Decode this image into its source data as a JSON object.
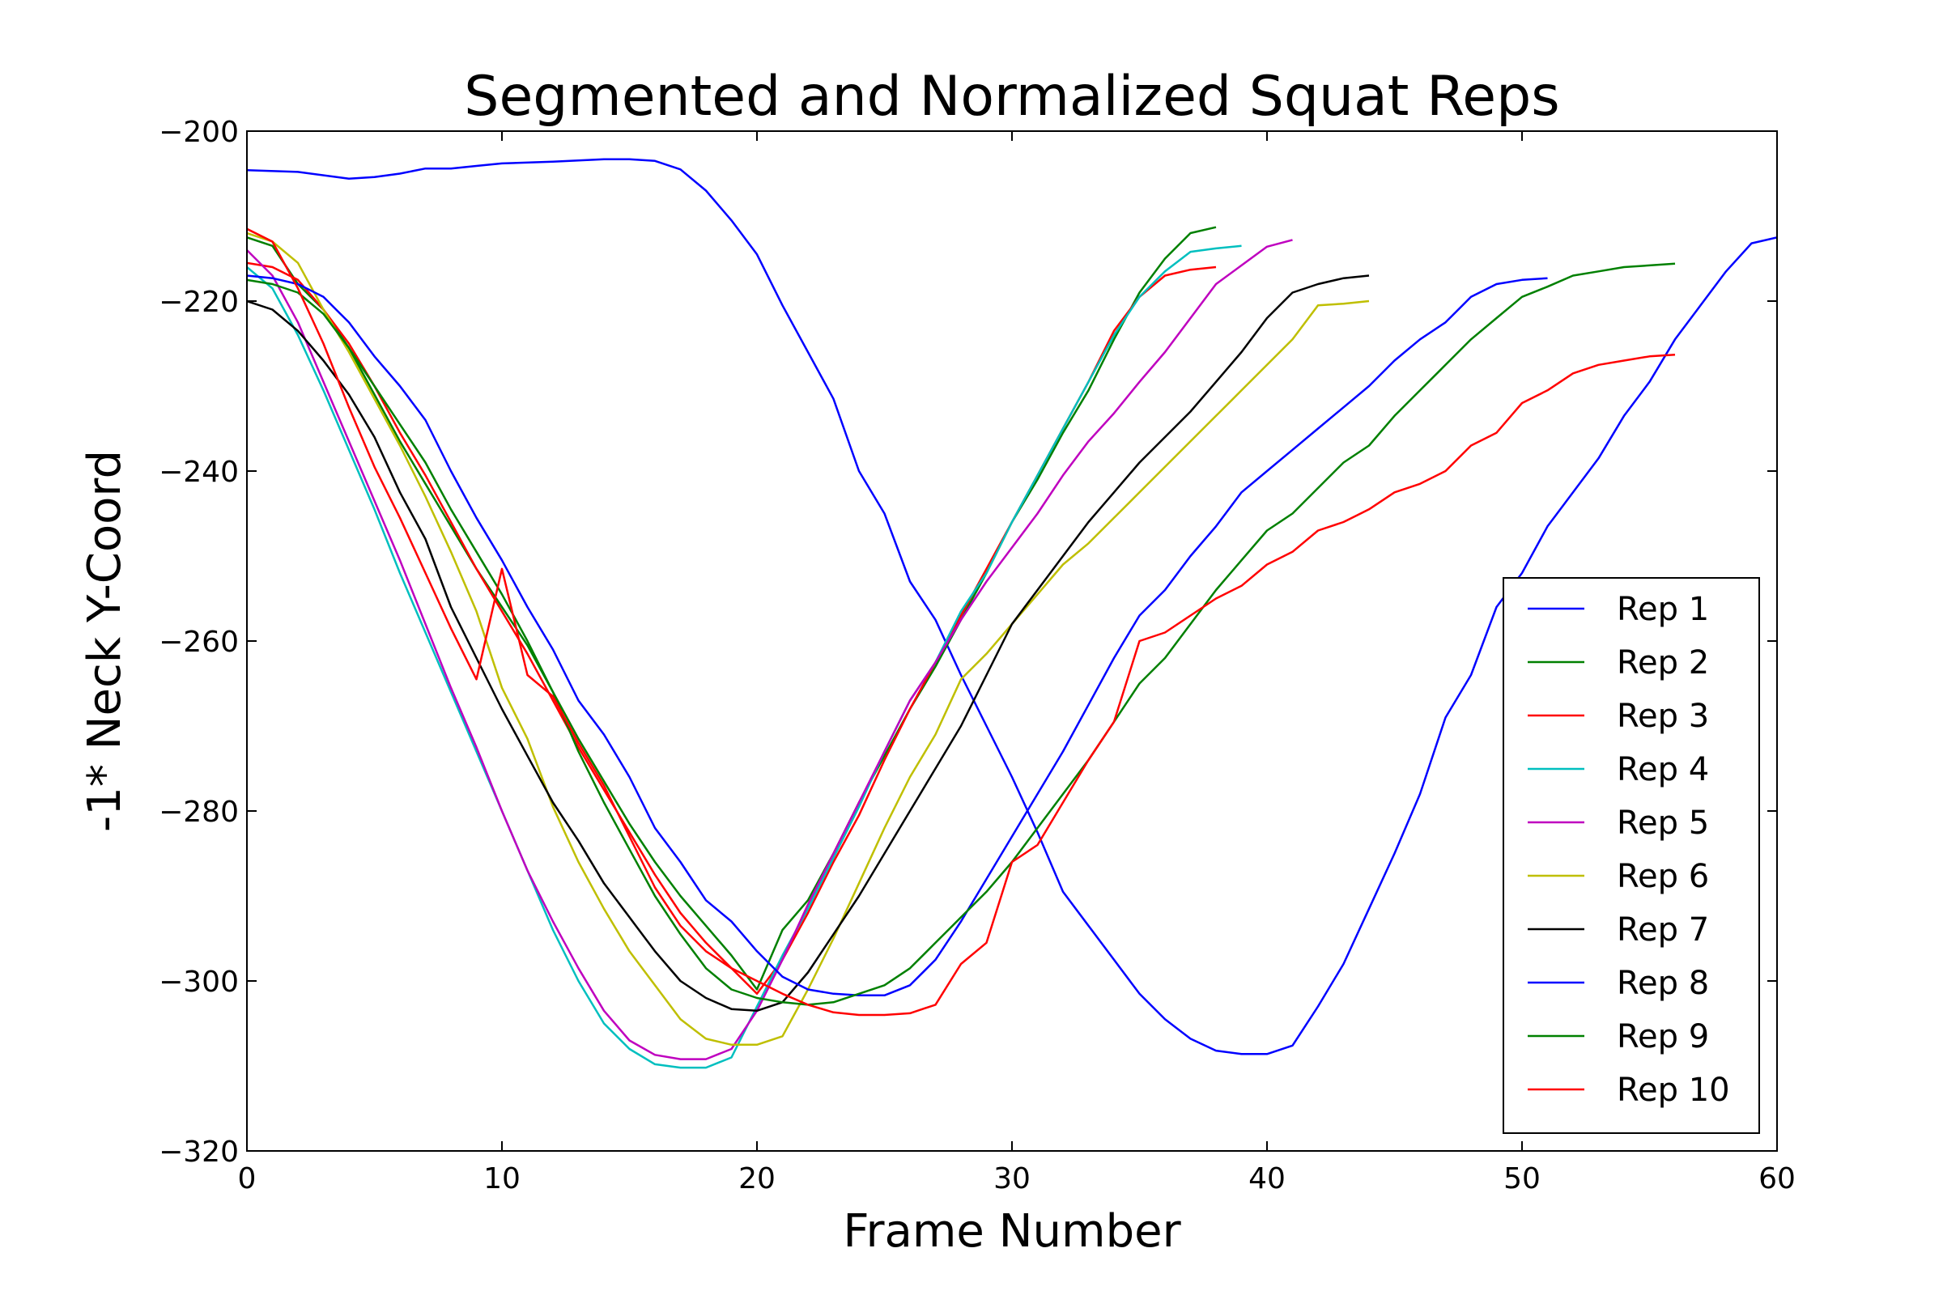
{
  "chart_data": {
    "type": "line",
    "title": "Segmented and Normalized Squat Reps",
    "xlabel": "Frame Number",
    "ylabel": "-1* Neck Y-Coord",
    "xlim": [
      0,
      60
    ],
    "ylim": [
      -320,
      -200
    ],
    "xticks": [
      0,
      10,
      20,
      30,
      40,
      50,
      60
    ],
    "xtick_labels": [
      "0",
      "10",
      "20",
      "30",
      "40",
      "50",
      "60"
    ],
    "yticks": [
      -200,
      -220,
      -240,
      -260,
      -280,
      -300,
      -320
    ],
    "ytick_labels": [
      "−200",
      "−220",
      "−240",
      "−260",
      "−280",
      "−300",
      "−320"
    ],
    "grid": false,
    "legend_position": "lower-right",
    "series": [
      {
        "name": "Rep 1",
        "color": "#0000ff",
        "x": [
          0,
          2,
          4,
          5,
          6,
          7,
          8,
          9,
          10,
          12,
          14,
          15,
          16,
          17,
          18,
          19,
          20,
          21,
          22,
          23,
          24,
          25,
          26,
          27,
          28,
          29,
          30,
          31,
          32,
          33,
          34,
          35,
          36,
          37,
          38,
          39,
          40,
          41,
          42,
          43,
          44,
          45,
          46,
          47,
          48,
          49,
          50,
          51,
          52,
          53,
          54,
          55,
          56,
          57,
          58,
          59,
          60
        ],
        "y": [
          -204.6,
          -204.8,
          -205.6,
          -205.4,
          -205,
          -204.4,
          -204.4,
          -204.1,
          -203.8,
          -203.6,
          -203.3,
          -203.3,
          -203.5,
          -204.5,
          -207,
          -210.5,
          -214.5,
          -220.5,
          -226,
          -231.5,
          -240,
          -245,
          -253,
          -257.5,
          -264,
          -270,
          -276,
          -282.5,
          -289.5,
          -293.5,
          -297.5,
          -301.5,
          -304.5,
          -306.8,
          -308.2,
          -308.6,
          -308.6,
          -307.6,
          -303,
          -298,
          -291.5,
          -285,
          -278,
          -269,
          -264,
          -256,
          -252,
          -246.5,
          -242.5,
          -238.5,
          -233.5,
          -229.5,
          -224.5,
          -220.5,
          -216.5,
          -213.2,
          -212.5
        ]
      },
      {
        "name": "Rep 2",
        "color": "#008000",
        "x": [
          0,
          1,
          2,
          3,
          4,
          5,
          6,
          7,
          8,
          9,
          10,
          11,
          12,
          13,
          14,
          15,
          16,
          17,
          18,
          19,
          20,
          21,
          22,
          23,
          24,
          25,
          26,
          27,
          28,
          29,
          30,
          31,
          32,
          33,
          34,
          35,
          36,
          37,
          38
        ],
        "y": [
          -212.5,
          -213.5,
          -218,
          -221,
          -225.5,
          -231,
          -236.5,
          -241.5,
          -246.5,
          -251.5,
          -256,
          -260.5,
          -266,
          -271.5,
          -276.5,
          -281.5,
          -286,
          -290,
          -293.5,
          -297,
          -301,
          -294,
          -290.5,
          -285,
          -279,
          -273.5,
          -268,
          -263,
          -257.5,
          -252,
          -246,
          -241,
          -235.5,
          -230.5,
          -224.5,
          -219,
          -215,
          -212,
          -211.3
        ]
      },
      {
        "name": "Rep 3",
        "color": "#ff0000",
        "x": [
          0,
          1,
          2,
          3,
          4,
          5,
          6,
          7,
          8,
          9,
          10,
          11,
          12,
          13,
          14,
          15,
          16,
          17,
          18,
          19,
          20,
          21,
          22,
          23,
          24,
          25,
          26,
          27,
          28,
          29,
          30,
          31,
          32,
          33,
          34,
          35,
          36,
          37,
          38
        ],
        "y": [
          -215.5,
          -216,
          -217.5,
          -221,
          -225,
          -230,
          -235.5,
          -240.5,
          -246,
          -251.5,
          -256.5,
          -261.5,
          -267,
          -272.5,
          -277.5,
          -282.5,
          -287.5,
          -292,
          -295.5,
          -298.5,
          -301.5,
          -297.5,
          -292,
          -286,
          -280.5,
          -274,
          -268,
          -262.5,
          -257,
          -251.5,
          -246,
          -240.5,
          -235,
          -229.5,
          -223.5,
          -219.5,
          -217,
          -216.3,
          -216
        ]
      },
      {
        "name": "Rep 4",
        "color": "#00bfbf",
        "x": [
          0,
          1,
          2,
          3,
          4,
          5,
          6,
          7,
          8,
          9,
          10,
          11,
          12,
          13,
          14,
          15,
          16,
          17,
          18,
          19,
          20,
          21,
          22,
          23,
          24,
          25,
          26,
          27,
          28,
          29,
          30,
          31,
          32,
          33,
          34,
          35,
          36,
          37,
          38,
          39
        ],
        "y": [
          -216,
          -218.5,
          -224,
          -230.5,
          -237.5,
          -244.5,
          -252,
          -259,
          -266,
          -273,
          -280,
          -287,
          -294,
          -300,
          -305,
          -308,
          -309.8,
          -310.2,
          -310.2,
          -309,
          -303,
          -297,
          -291.5,
          -285.5,
          -279.5,
          -273,
          -267,
          -262.5,
          -256.5,
          -252,
          -246,
          -240.5,
          -235,
          -229.5,
          -224,
          -219.5,
          -216.5,
          -214.2,
          -213.8,
          -213.5
        ]
      },
      {
        "name": "Rep 5",
        "color": "#bf00bf",
        "x": [
          0,
          1,
          2,
          3,
          4,
          5,
          6,
          7,
          8,
          9,
          10,
          11,
          12,
          13,
          14,
          15,
          16,
          17,
          18,
          19,
          20,
          21,
          22,
          23,
          24,
          25,
          26,
          27,
          28,
          29,
          30,
          31,
          32,
          33,
          34,
          35,
          36,
          37,
          38,
          39,
          40,
          41
        ],
        "y": [
          -214,
          -217,
          -222.5,
          -229.5,
          -236.5,
          -243.5,
          -250.5,
          -258,
          -265.5,
          -272.5,
          -280,
          -287,
          -293,
          -298.5,
          -303.5,
          -307,
          -308.7,
          -309.2,
          -309.2,
          -308,
          -303.5,
          -297.5,
          -291,
          -285,
          -279,
          -273,
          -267,
          -262.5,
          -257.5,
          -253,
          -249,
          -245,
          -240.5,
          -236.5,
          -233.2,
          -229.5,
          -226,
          -222,
          -218,
          -215.8,
          -213.6,
          -212.8
        ]
      },
      {
        "name": "Rep 6",
        "color": "#bfbf00",
        "x": [
          0,
          1,
          2,
          3,
          4,
          5,
          6,
          7,
          8,
          9,
          10,
          11,
          12,
          13,
          14,
          15,
          16,
          17,
          18,
          19,
          20,
          21,
          22,
          23,
          24,
          25,
          26,
          27,
          28,
          29,
          30,
          31,
          32,
          33,
          34,
          35,
          36,
          37,
          38,
          39,
          40,
          41,
          42,
          43,
          44
        ],
        "y": [
          -212,
          -213,
          -215.5,
          -221,
          -226,
          -231.5,
          -237,
          -243,
          -249.5,
          -256.5,
          -265.5,
          -271.5,
          -279.5,
          -286,
          -291.5,
          -296.5,
          -300.5,
          -304.5,
          -306.8,
          -307.5,
          -307.5,
          -306.5,
          -301,
          -295,
          -288.5,
          -282,
          -276,
          -271,
          -264.5,
          -261.5,
          -258,
          -254.5,
          -251,
          -248.5,
          -245.5,
          -242.5,
          -239.5,
          -236.5,
          -233.5,
          -230.5,
          -227.5,
          -224.5,
          -220.5,
          -220.3,
          -220
        ]
      },
      {
        "name": "Rep 7",
        "color": "#000000",
        "x": [
          0,
          1,
          2,
          3,
          4,
          5,
          6,
          7,
          8,
          9,
          10,
          11,
          12,
          13,
          14,
          15,
          16,
          17,
          18,
          19,
          20,
          21,
          22,
          23,
          24,
          25,
          26,
          27,
          28,
          29,
          30,
          31,
          32,
          33,
          34,
          35,
          36,
          37,
          38,
          39,
          40,
          41,
          42,
          43,
          44
        ],
        "y": [
          -220,
          -221,
          -223.5,
          -227,
          -231,
          -236,
          -242.5,
          -248,
          -256,
          -262,
          -268,
          -273.5,
          -279,
          -283.5,
          -288.5,
          -292.5,
          -296.5,
          -300,
          -302,
          -303.3,
          -303.5,
          -302.5,
          -299,
          -294.5,
          -290,
          -285,
          -280,
          -275,
          -270,
          -264,
          -258,
          -254,
          -250,
          -246,
          -242.5,
          -239,
          -236,
          -233,
          -229.5,
          -226,
          -222,
          -219,
          -218,
          -217.3,
          -217
        ]
      },
      {
        "name": "Rep 8",
        "color": "#0000ff",
        "x": [
          0,
          1,
          2,
          3,
          4,
          5,
          6,
          7,
          8,
          9,
          10,
          11,
          12,
          13,
          14,
          15,
          16,
          17,
          18,
          19,
          20,
          21,
          22,
          23,
          24,
          25,
          26,
          27,
          28,
          29,
          30,
          31,
          32,
          33,
          34,
          35,
          36,
          37,
          38,
          39,
          40,
          41,
          42,
          43,
          44,
          45,
          46,
          47,
          48,
          49,
          50,
          51
        ],
        "y": [
          -217,
          -217.3,
          -218,
          -219.5,
          -222.5,
          -226.5,
          -230,
          -234,
          -240,
          -245.5,
          -250.5,
          -256,
          -261,
          -267,
          -271,
          -276,
          -282,
          -286,
          -290.5,
          -293,
          -296.5,
          -299.5,
          -301,
          -301.5,
          -301.7,
          -301.7,
          -300.5,
          -297.5,
          -293,
          -288,
          -283,
          -278,
          -273,
          -267.5,
          -262,
          -257,
          -254,
          -250,
          -246.5,
          -242.5,
          -240,
          -237.5,
          -235,
          -232.5,
          -230,
          -227,
          -224.5,
          -222.5,
          -219.5,
          -218,
          -217.5,
          -217.3
        ]
      },
      {
        "name": "Rep 9",
        "color": "#008000",
        "x": [
          0,
          1,
          2,
          3,
          4,
          5,
          6,
          7,
          8,
          9,
          10,
          11,
          12,
          13,
          14,
          15,
          16,
          17,
          18,
          19,
          20,
          21,
          22,
          23,
          24,
          25,
          26,
          27,
          28,
          29,
          30,
          31,
          32,
          33,
          34,
          35,
          36,
          37,
          38,
          39,
          40,
          41,
          42,
          43,
          44,
          45,
          46,
          47,
          48,
          49,
          50,
          51,
          52,
          53,
          54,
          55,
          56
        ],
        "y": [
          -217.5,
          -218,
          -219,
          -221.5,
          -225.5,
          -230,
          -234.5,
          -239,
          -244.5,
          -249.5,
          -254.5,
          -260,
          -266,
          -273,
          -279,
          -284.5,
          -290,
          -294.5,
          -298.5,
          -301,
          -302,
          -302.5,
          -302.8,
          -302.5,
          -301.5,
          -300.5,
          -298.5,
          -295.5,
          -292.5,
          -289.5,
          -286,
          -282,
          -278,
          -274,
          -269.5,
          -265,
          -262,
          -258,
          -254,
          -250.5,
          -247,
          -245,
          -242,
          -239,
          -237,
          -233.5,
          -230.5,
          -227.5,
          -224.5,
          -222,
          -219.5,
          -218.3,
          -217,
          -216.5,
          -216,
          -215.8,
          -215.6
        ]
      },
      {
        "name": "Rep 10",
        "color": "#ff0000",
        "x": [
          0,
          1,
          2,
          3,
          4,
          5,
          6,
          7,
          8,
          9,
          10,
          11,
          12,
          13,
          14,
          15,
          16,
          17,
          18,
          19,
          20,
          21,
          22,
          23,
          24,
          25,
          26,
          27,
          28,
          29,
          30,
          31,
          32,
          33,
          34,
          35,
          36,
          37,
          38,
          39,
          40,
          41,
          42,
          43,
          44,
          45,
          46,
          47,
          48,
          49,
          50,
          51,
          52,
          53,
          54,
          55,
          56
        ],
        "y": [
          -211.5,
          -213,
          -218.5,
          -225,
          -232.5,
          -239.5,
          -245.5,
          -252,
          -258.5,
          -264.5,
          -251.5,
          -264,
          -266.5,
          -272,
          -277,
          -283,
          -289,
          -293.5,
          -296.5,
          -298.5,
          -300,
          -301.5,
          -302.8,
          -303.7,
          -304,
          -304,
          -303.8,
          -302.8,
          -298,
          -295.5,
          -286,
          -284,
          -279,
          -274,
          -269.5,
          -260,
          -259,
          -257,
          -255,
          -253.5,
          -251,
          -249.5,
          -247,
          -246,
          -244.5,
          -242.5,
          -241.5,
          -240,
          -237,
          -235.5,
          -232,
          -230.5,
          -228.5,
          -227.5,
          -227,
          -226.5,
          -226.3
        ]
      }
    ]
  }
}
